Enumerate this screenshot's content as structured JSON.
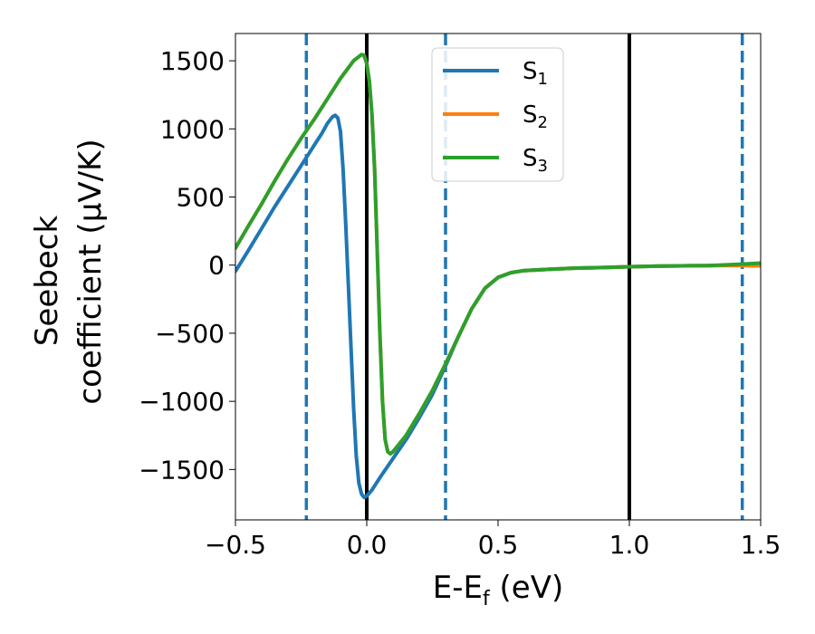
{
  "chart_data": {
    "type": "line",
    "xlabel": {
      "main": "E-E",
      "sub": "f",
      "unit": " (eV)"
    },
    "ylabel": {
      "line1": "Seebeck",
      "line2": "coefficient  (μV/K)"
    },
    "xlim": [
      -0.5,
      1.5
    ],
    "ylim": [
      -1870,
      1700
    ],
    "xticks": [
      -0.5,
      0.0,
      0.5,
      1.0,
      1.5
    ],
    "xtick_labels": [
      "−0.5",
      "0.0",
      "0.5",
      "1.0",
      "1.5"
    ],
    "yticks": [
      -1500,
      -1000,
      -500,
      0,
      500,
      1000,
      1500
    ],
    "ytick_labels": [
      "−1500",
      "−1000",
      "−500",
      "0",
      "500",
      "1000",
      "1500"
    ],
    "grid": false,
    "legend_position": "top-center",
    "series": [
      {
        "name": "S1",
        "name_main": "S",
        "name_sub": "1",
        "color": "#1f77b4",
        "points": [
          [
            -0.5,
            -45
          ],
          [
            -0.45,
            110
          ],
          [
            -0.4,
            270
          ],
          [
            -0.35,
            430
          ],
          [
            -0.3,
            580
          ],
          [
            -0.25,
            730
          ],
          [
            -0.22,
            820
          ],
          [
            -0.2,
            880
          ],
          [
            -0.17,
            970
          ],
          [
            -0.15,
            1040
          ],
          [
            -0.13,
            1090
          ],
          [
            -0.12,
            1100
          ],
          [
            -0.11,
            1080
          ],
          [
            -0.1,
            980
          ],
          [
            -0.09,
            700
          ],
          [
            -0.08,
            300
          ],
          [
            -0.07,
            -150
          ],
          [
            -0.06,
            -600
          ],
          [
            -0.05,
            -1050
          ],
          [
            -0.04,
            -1400
          ],
          [
            -0.03,
            -1600
          ],
          [
            -0.02,
            -1680
          ],
          [
            -0.01,
            -1705
          ],
          [
            0.0,
            -1695
          ],
          [
            0.02,
            -1650
          ],
          [
            0.05,
            -1560
          ],
          [
            0.1,
            -1420
          ],
          [
            0.15,
            -1280
          ],
          [
            0.2,
            -1120
          ],
          [
            0.25,
            -950
          ],
          [
            0.3,
            -740
          ],
          [
            0.35,
            -520
          ],
          [
            0.4,
            -320
          ],
          [
            0.45,
            -170
          ],
          [
            0.5,
            -90
          ],
          [
            0.55,
            -55
          ],
          [
            0.6,
            -40
          ],
          [
            0.7,
            -30
          ],
          [
            0.8,
            -22
          ],
          [
            0.9,
            -18
          ],
          [
            1.0,
            -12
          ],
          [
            1.1,
            -8
          ],
          [
            1.2,
            -5
          ],
          [
            1.3,
            -3
          ],
          [
            1.4,
            0
          ],
          [
            1.5,
            0
          ]
        ]
      },
      {
        "name": "S2",
        "name_main": "S",
        "name_sub": "2",
        "color": "#ff7f0e",
        "points": [
          [
            -0.5,
            125
          ],
          [
            -0.45,
            290
          ],
          [
            -0.4,
            450
          ],
          [
            -0.35,
            620
          ],
          [
            -0.3,
            780
          ],
          [
            -0.25,
            930
          ],
          [
            -0.2,
            1070
          ],
          [
            -0.15,
            1220
          ],
          [
            -0.1,
            1370
          ],
          [
            -0.05,
            1500
          ],
          [
            -0.02,
            1545
          ],
          [
            -0.01,
            1540
          ],
          [
            0.0,
            1480
          ],
          [
            0.01,
            1350
          ],
          [
            0.02,
            1100
          ],
          [
            0.03,
            700
          ],
          [
            0.04,
            100
          ],
          [
            0.05,
            -500
          ],
          [
            0.06,
            -1000
          ],
          [
            0.07,
            -1280
          ],
          [
            0.08,
            -1370
          ],
          [
            0.09,
            -1385
          ],
          [
            0.1,
            -1370
          ],
          [
            0.15,
            -1250
          ],
          [
            0.2,
            -1090
          ],
          [
            0.25,
            -920
          ],
          [
            0.3,
            -725
          ],
          [
            0.35,
            -520
          ],
          [
            0.4,
            -320
          ],
          [
            0.45,
            -170
          ],
          [
            0.5,
            -90
          ],
          [
            0.55,
            -55
          ],
          [
            0.6,
            -40
          ],
          [
            0.7,
            -30
          ],
          [
            0.8,
            -22
          ],
          [
            0.9,
            -18
          ],
          [
            1.0,
            -12
          ],
          [
            1.1,
            -8
          ],
          [
            1.2,
            -5
          ],
          [
            1.3,
            -3
          ],
          [
            1.4,
            -3
          ],
          [
            1.5,
            -5
          ]
        ]
      },
      {
        "name": "S3",
        "name_main": "S",
        "name_sub": "3",
        "color": "#2ca02c",
        "points": [
          [
            -0.5,
            125
          ],
          [
            -0.45,
            290
          ],
          [
            -0.4,
            450
          ],
          [
            -0.35,
            620
          ],
          [
            -0.3,
            780
          ],
          [
            -0.25,
            930
          ],
          [
            -0.2,
            1070
          ],
          [
            -0.15,
            1220
          ],
          [
            -0.1,
            1370
          ],
          [
            -0.05,
            1500
          ],
          [
            -0.02,
            1545
          ],
          [
            -0.01,
            1540
          ],
          [
            0.0,
            1480
          ],
          [
            0.01,
            1350
          ],
          [
            0.02,
            1100
          ],
          [
            0.03,
            700
          ],
          [
            0.04,
            100
          ],
          [
            0.05,
            -500
          ],
          [
            0.06,
            -1000
          ],
          [
            0.07,
            -1280
          ],
          [
            0.08,
            -1370
          ],
          [
            0.09,
            -1385
          ],
          [
            0.1,
            -1370
          ],
          [
            0.15,
            -1250
          ],
          [
            0.2,
            -1090
          ],
          [
            0.25,
            -920
          ],
          [
            0.3,
            -725
          ],
          [
            0.35,
            -520
          ],
          [
            0.4,
            -320
          ],
          [
            0.45,
            -170
          ],
          [
            0.5,
            -90
          ],
          [
            0.55,
            -55
          ],
          [
            0.6,
            -40
          ],
          [
            0.7,
            -30
          ],
          [
            0.8,
            -22
          ],
          [
            0.9,
            -18
          ],
          [
            1.0,
            -12
          ],
          [
            1.1,
            -8
          ],
          [
            1.2,
            -5
          ],
          [
            1.3,
            -3
          ],
          [
            1.4,
            5
          ],
          [
            1.5,
            15
          ]
        ]
      }
    ],
    "vlines": [
      {
        "x": -0.23,
        "style": "dashed",
        "color": "#1f77b4"
      },
      {
        "x": 0.0,
        "style": "solid",
        "color": "#000000"
      },
      {
        "x": 0.3,
        "style": "dashed",
        "color": "#1f77b4"
      },
      {
        "x": 1.0,
        "style": "solid",
        "color": "#000000"
      },
      {
        "x": 1.43,
        "style": "dashed",
        "color": "#1f77b4"
      }
    ]
  }
}
